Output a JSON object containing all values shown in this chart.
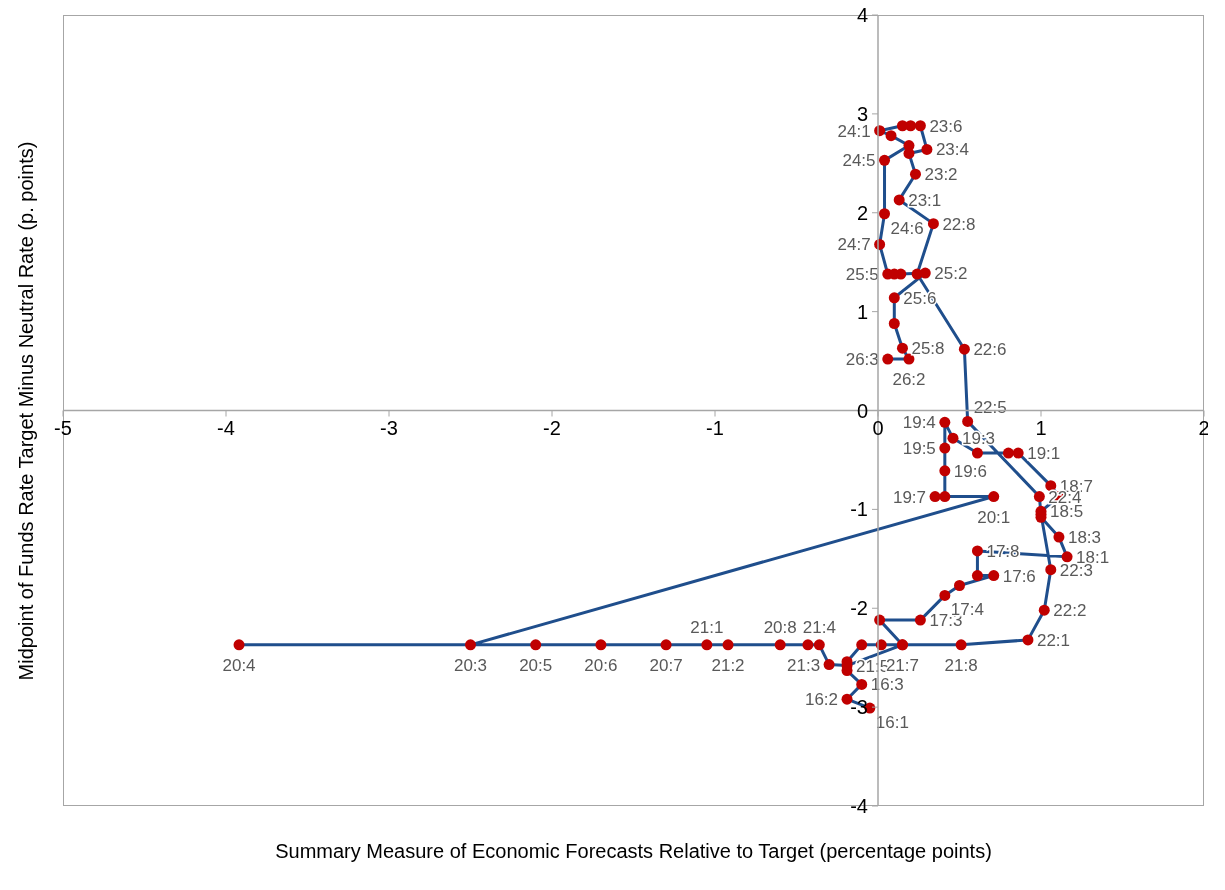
{
  "chart_data": {
    "type": "line",
    "xlabel": "Summary Measure of Economic Forecasts Relative to Target (percentage points)",
    "ylabel": "Midpoint of Funds Rate Target Minus Neutral Rate (p. points)",
    "xlim": [
      -5,
      2
    ],
    "xticks": [
      -5,
      -4,
      -3,
      -2,
      -1,
      0,
      1,
      2
    ],
    "ylim": [
      -4,
      4
    ],
    "yticks": [
      -4,
      -3,
      -2,
      -1,
      0,
      1,
      2,
      3,
      4
    ],
    "grid": false,
    "legend": false,
    "marker": "circle",
    "line_style": "solid",
    "series": [
      {
        "color": "#1f4e8c",
        "colors": [
          "#c00000",
          "#c00000",
          "#c00000",
          "#c00000",
          "#c00000",
          "#c00000",
          "#c00000",
          "#c00000",
          "#c00000",
          "#c00000",
          "#c00000",
          "#c00000",
          "#c00000",
          "#c00000",
          "#c00000",
          "#c00000",
          "#c00000",
          "#c00000",
          "#c00000",
          "#c00000",
          "#c00000",
          "#c00000",
          "#c00000",
          "#c00000",
          "#c00000",
          "#c00000",
          "#c00000",
          "#c00000",
          "#c00000",
          "#c00000",
          "#c00000",
          "#c00000",
          "#c00000",
          "#c00000",
          "#c00000",
          "#c00000",
          "#c00000",
          "#c00000",
          "#c00000",
          "#c00000",
          "#c00000",
          "#c00000",
          "#c00000",
          "#c00000",
          "#c00000",
          "#c00000",
          "#c00000",
          "#c00000",
          "#c00000",
          "#c00000",
          "#c00000",
          "#c00000",
          "#c00000",
          "#c00000",
          "#c00000",
          "#c00000",
          "#c00000",
          "#c00000",
          "#c00000",
          "#c00000",
          "#c00000",
          "#c00000",
          "#c00000",
          "#c00000",
          "#c00000",
          "#c00000",
          "#c00000",
          "#c00000",
          "#c00000",
          "#c00000",
          "#c00000",
          "#c00000",
          "#c00000",
          "#c00000",
          "#c00000",
          "#c00000"
        ],
        "x": [
          -0.05,
          -0.19,
          -0.1,
          -0.19,
          -0.19,
          -0.1,
          0.02,
          0.15,
          0.01,
          0.26,
          0.41,
          0.5,
          0.71,
          0.61,
          0.61,
          1.16,
          1.11,
          1.0,
          1.0,
          1.11,
          1.06,
          0.86,
          0.8,
          0.61,
          0.46,
          0.41,
          0.41,
          0.41,
          0.41,
          0.35,
          0.71,
          -2.5,
          -3.92,
          -2.1,
          -1.7,
          -1.3,
          -0.6,
          -1.05,
          -0.92,
          -0.43,
          -0.36,
          -0.3,
          -0.19,
          0.15,
          0.51,
          0.92,
          1.02,
          1.06,
          1.0,
          0.99,
          0.55,
          0.53,
          0.24,
          0.34,
          0.13,
          0.23,
          0.19,
          0.3,
          0.26,
          0.2,
          0.15,
          0.01,
          0.08,
          0.19,
          0.04,
          0.04,
          0.01,
          0.06,
          0.1,
          0.14,
          0.29,
          0.1,
          0.1,
          0.15,
          0.19,
          0.06
        ],
        "values": [
          -3.01,
          -2.92,
          -2.77,
          -2.63,
          -2.54,
          -2.37,
          -2.37,
          -2.37,
          -2.12,
          -2.12,
          -1.87,
          -1.77,
          -1.67,
          -1.67,
          -1.42,
          -1.48,
          -1.28,
          -1.08,
          -1.02,
          -0.87,
          -0.76,
          -0.43,
          -0.43,
          -0.43,
          -0.28,
          -0.12,
          -0.38,
          -0.61,
          -0.87,
          -0.87,
          -0.87,
          -2.37,
          -2.37,
          -2.37,
          -2.37,
          -2.37,
          -2.37,
          -2.37,
          -2.37,
          -2.37,
          -2.37,
          -2.57,
          -2.58,
          -2.37,
          -2.37,
          -2.32,
          -2.02,
          -1.61,
          -1.05,
          -0.87,
          -0.11,
          0.62,
          1.38,
          1.89,
          2.13,
          2.39,
          2.6,
          2.64,
          2.88,
          2.88,
          2.88,
          2.83,
          2.78,
          2.68,
          2.53,
          1.99,
          1.68,
          1.38,
          1.38,
          1.38,
          1.39,
          1.14,
          0.88,
          0.63,
          0.52,
          0.52
        ],
        "value_labels": [
          "16:1",
          "16:2",
          "16:3",
          null,
          null,
          null,
          null,
          null,
          null,
          "17:3",
          "17:4",
          null,
          "17:6",
          null,
          "17:8",
          "18:1",
          "18:3",
          null,
          "18:5",
          null,
          "18:7",
          "19:1",
          null,
          null,
          "19:3",
          "19:4",
          "19:5",
          "19:6",
          null,
          "19:7",
          "20:1",
          "20:3",
          "20:4",
          "20:5",
          "20:6",
          "20:7",
          "20:8",
          "21:1",
          "21:2",
          null,
          "21:4",
          "21:3",
          "21:5",
          "21:7",
          "21:8",
          "22:1",
          "22:2",
          "22:3",
          null,
          "22:4",
          "22:5",
          "22:6",
          null,
          "22:8",
          "23:1",
          "23:2",
          null,
          "23:4",
          "23:6",
          null,
          null,
          "24:1",
          null,
          null,
          "24:5",
          "24:6",
          "24:7",
          "25:5",
          null,
          null,
          "25:2",
          "25:6",
          null,
          "25:8",
          "26:2",
          "26:3"
        ]
      }
    ]
  }
}
